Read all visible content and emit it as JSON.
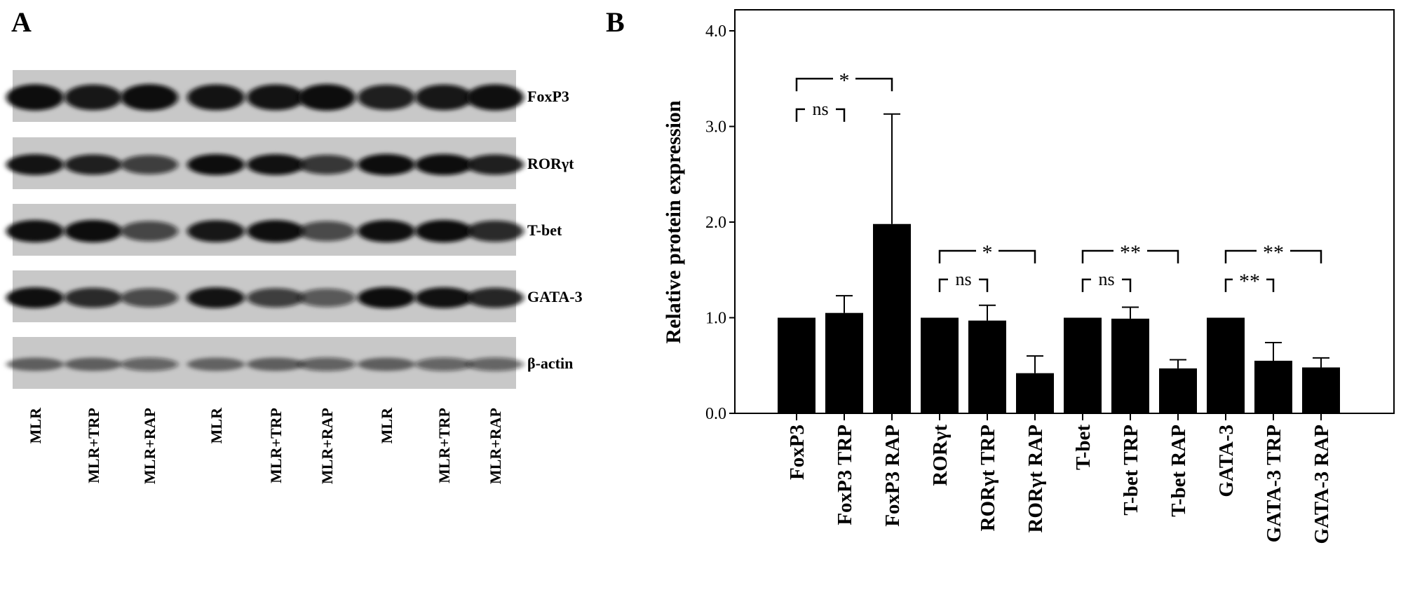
{
  "panel_a": {
    "letter": "A",
    "blots": [
      {
        "protein": "FoxP3",
        "intensity": [
          0.95,
          0.9,
          1.0,
          0.92,
          0.92,
          1.0,
          0.86,
          0.9,
          0.94
        ],
        "band_height": 1.0
      },
      {
        "protein": "RORγt",
        "intensity": [
          0.92,
          0.86,
          0.7,
          0.97,
          0.93,
          0.74,
          1.0,
          0.95,
          0.86
        ],
        "band_height": 0.8
      },
      {
        "protein": "T-bet",
        "intensity": [
          0.94,
          0.97,
          0.66,
          0.9,
          0.94,
          0.64,
          0.94,
          0.96,
          0.8
        ],
        "band_height": 0.85
      },
      {
        "protein": "GATA-3",
        "intensity": [
          0.94,
          0.8,
          0.64,
          0.92,
          0.7,
          0.56,
          1.0,
          0.93,
          0.82
        ],
        "band_height": 0.8
      },
      {
        "protein": "β-actin",
        "intensity": [
          0.48,
          0.48,
          0.5,
          0.46,
          0.48,
          0.52,
          0.48,
          0.5,
          0.5
        ],
        "band_height": 0.6
      }
    ],
    "lanes": [
      "MLR",
      "MLR+TRP",
      "MLR+RAP",
      "MLR",
      "MLR+TRP",
      "MLR+RAP",
      "MLR",
      "MLR+TRP",
      "MLR+RAP"
    ],
    "colors": {
      "membrane": "#c8c8c8",
      "band": "#0c0c0c"
    }
  },
  "panel_b": {
    "letter": "B"
  },
  "chart_data": {
    "type": "bar",
    "title": "",
    "xlabel": "",
    "ylabel": "Relative protein expression",
    "ylim": [
      0,
      4.0
    ],
    "yticks": [
      0.0,
      1.0,
      2.0,
      3.0,
      4.0
    ],
    "ytick_labels": [
      "0.0",
      "1.0",
      "2.0",
      "3.0",
      "4.0"
    ],
    "categories": [
      "FoxP3",
      "FoxP3 TRP",
      "FoxP3 RAP",
      "RORγt",
      "RORγt TRP",
      "RORγt RAP",
      "T-bet",
      "T-bet TRP",
      "T-bet RAP",
      "GATA-3",
      "GATA-3 TRP",
      "GATA-3 RAP"
    ],
    "values": [
      1.0,
      1.05,
      1.98,
      1.0,
      0.97,
      0.42,
      1.0,
      0.99,
      0.47,
      1.0,
      0.55,
      0.48
    ],
    "errors": [
      0.0,
      0.18,
      1.15,
      0.0,
      0.16,
      0.18,
      0.0,
      0.12,
      0.09,
      0.0,
      0.19,
      0.1
    ],
    "bar_color": "#000000",
    "grid": false,
    "significance": [
      {
        "from": 0,
        "to": 1,
        "label": "ns",
        "level": 3.18
      },
      {
        "from": 0,
        "to": 2,
        "label": "*",
        "level": 3.5
      },
      {
        "from": 3,
        "to": 4,
        "label": "ns",
        "level": 1.4
      },
      {
        "from": 3,
        "to": 5,
        "label": "*",
        "level": 1.7
      },
      {
        "from": 6,
        "to": 7,
        "label": "ns",
        "level": 1.4
      },
      {
        "from": 6,
        "to": 8,
        "label": "**",
        "level": 1.7
      },
      {
        "from": 9,
        "to": 10,
        "label": "**",
        "level": 1.4
      },
      {
        "from": 9,
        "to": 11,
        "label": "**",
        "level": 1.7
      }
    ]
  }
}
